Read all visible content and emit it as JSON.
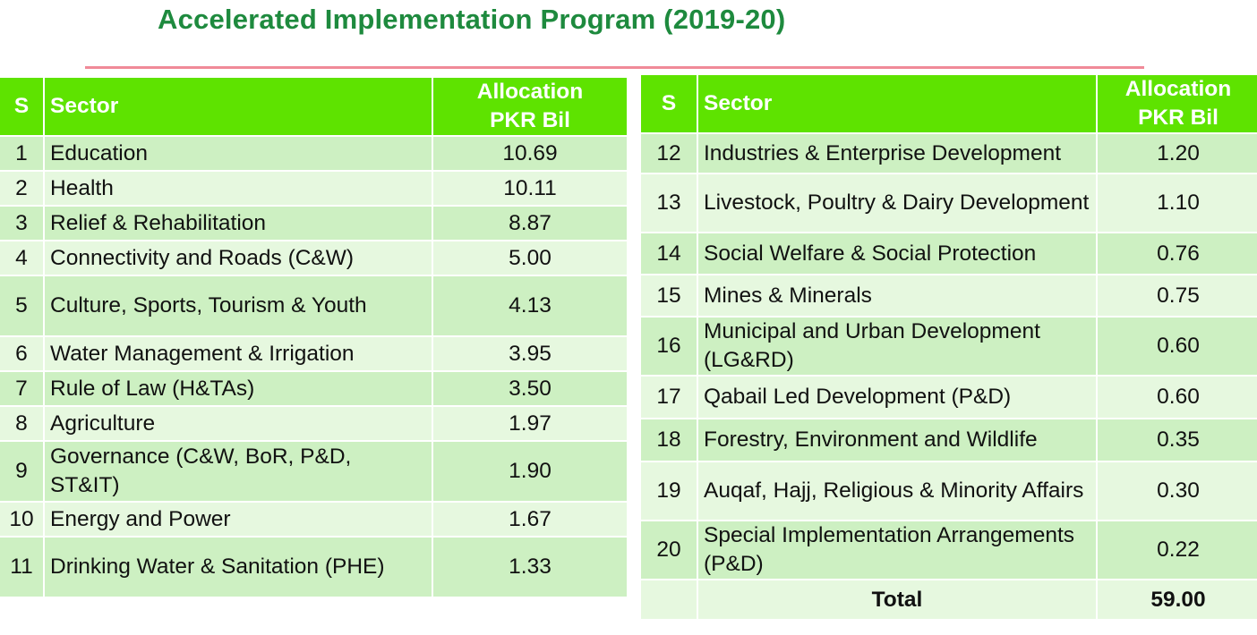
{
  "title": "Accelerated Implementation Program (2019-20)",
  "headers": {
    "s": "S",
    "sector": "Sector",
    "allocation_line1": "Allocation",
    "allocation_line2": "PKR Bil"
  },
  "left_rows": [
    {
      "s": "1",
      "sector": "Education",
      "alloc": "10.69"
    },
    {
      "s": "2",
      "sector": "Health",
      "alloc": "10.11"
    },
    {
      "s": "3",
      "sector": "Relief & Rehabilitation",
      "alloc": "8.87"
    },
    {
      "s": "4",
      "sector": "Connectivity and Roads (C&W)",
      "alloc": "5.00"
    },
    {
      "s": "5",
      "sector": "Culture, Sports, Tourism & Youth",
      "alloc": "4.13"
    },
    {
      "s": "6",
      "sector": "Water Management & Irrigation",
      "alloc": "3.95"
    },
    {
      "s": "7",
      "sector": "Rule of Law (H&TAs)",
      "alloc": "3.50"
    },
    {
      "s": "8",
      "sector": "Agriculture",
      "alloc": "1.97"
    },
    {
      "s": "9",
      "sector": "Governance (C&W, BoR, P&D, ST&IT)",
      "alloc": "1.90"
    },
    {
      "s": "10",
      "sector": "Energy and Power",
      "alloc": "1.67"
    },
    {
      "s": "11",
      "sector": "Drinking Water & Sanitation (PHE)",
      "alloc": "1.33"
    }
  ],
  "right_rows": [
    {
      "s": "12",
      "sector": "Industries & Enterprise Development",
      "alloc": "1.20"
    },
    {
      "s": "13",
      "sector": "Livestock, Poultry & Dairy Development",
      "alloc": "1.10"
    },
    {
      "s": "14",
      "sector": "Social Welfare & Social Protection",
      "alloc": "0.76"
    },
    {
      "s": "15",
      "sector": "Mines & Minerals",
      "alloc": "0.75"
    },
    {
      "s": "16",
      "sector": "Municipal and Urban Development (LG&RD)",
      "alloc": "0.60"
    },
    {
      "s": "17",
      "sector": "Qabail Led Development (P&D)",
      "alloc": "0.60"
    },
    {
      "s": "18",
      "sector": "Forestry, Environment and Wildlife",
      "alloc": "0.35"
    },
    {
      "s": "19",
      "sector": "Auqaf, Hajj, Religious & Minority Affairs",
      "alloc": "0.30"
    },
    {
      "s": "20",
      "sector": "Special Implementation Arrangements (P&D)",
      "alloc": "0.22"
    }
  ],
  "total": {
    "label": "Total",
    "value": "59.00"
  },
  "colors": {
    "header_bg": "#5ee300",
    "row_dark": "#cdf0c2",
    "row_light": "#e6f8df",
    "title": "#1e8a3e",
    "rule": "#f08a98"
  }
}
